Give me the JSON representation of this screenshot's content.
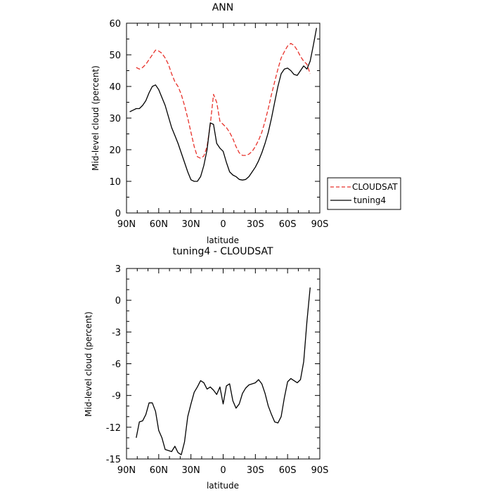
{
  "chart_data": [
    {
      "type": "line",
      "title": "ANN",
      "xlabel": "latitude",
      "ylabel": "Mid-level cloud (percent)",
      "ylim": [
        0,
        60
      ],
      "xlim": [
        90,
        -90
      ],
      "x_axis_note": "latitude in degrees, positive = N, negative = S",
      "yticks": [
        "0",
        "10",
        "20",
        "30",
        "40",
        "50",
        "60"
      ],
      "xticks": [
        "90N",
        "60N",
        "30N",
        "0",
        "30S",
        "60S",
        "90S"
      ],
      "legend": {
        "placement": "outside-right",
        "entries": [
          "CLOUDSAT",
          "tuning4"
        ]
      },
      "series": [
        {
          "name": "CLOUDSAT",
          "color": "#e8322b",
          "dash": "dashed",
          "x": [
            81,
            78,
            75,
            72,
            69,
            66,
            63,
            60,
            57,
            54,
            51,
            48,
            45,
            42,
            39,
            36,
            33,
            30,
            27,
            24,
            21,
            18,
            15,
            12,
            9,
            6,
            3,
            0,
            -3,
            -6,
            -9,
            -12,
            -15,
            -18,
            -21,
            -24,
            -27,
            -30,
            -33,
            -36,
            -39,
            -42,
            -45,
            -48,
            -51,
            -54,
            -57,
            -60,
            -63,
            -66,
            -69,
            -72,
            -75,
            -78,
            -81
          ],
          "y": [
            46,
            45.5,
            46,
            47,
            48.5,
            50,
            51.5,
            51.2,
            50.5,
            49,
            47,
            44,
            41.5,
            40,
            37.5,
            34,
            30,
            25.5,
            21,
            17.8,
            17.3,
            18,
            21,
            28,
            37.5,
            35,
            29,
            28,
            27,
            25.5,
            23.5,
            21,
            19,
            18.2,
            18.2,
            18.6,
            19.5,
            21,
            23,
            25.5,
            29,
            33,
            37.5,
            41.5,
            45.5,
            49,
            51,
            52.8,
            53.6,
            53,
            51.5,
            49.5,
            48,
            47,
            44
          ]
        },
        {
          "name": "tuning4",
          "color": "#000000",
          "dash": "solid",
          "x": [
            87,
            84,
            81,
            78,
            75,
            72,
            69,
            66,
            63,
            60,
            57,
            54,
            51,
            48,
            45,
            42,
            39,
            36,
            33,
            30,
            27,
            24,
            21,
            18,
            15,
            12,
            9,
            6,
            3,
            0,
            -3,
            -6,
            -9,
            -12,
            -15,
            -18,
            -21,
            -24,
            -27,
            -30,
            -33,
            -36,
            -39,
            -42,
            -45,
            -48,
            -51,
            -54,
            -57,
            -60,
            -63,
            -66,
            -69,
            -72,
            -75,
            -78,
            -81,
            -84,
            -87
          ],
          "y": [
            32,
            32.5,
            33,
            33,
            34,
            35.5,
            38,
            40,
            40.5,
            39,
            36.5,
            34,
            30.5,
            27,
            24.5,
            22,
            19,
            16,
            13,
            10.5,
            10,
            10,
            11.5,
            15,
            20,
            28.5,
            28,
            22,
            20.5,
            19.5,
            16,
            13,
            12,
            11.5,
            10.6,
            10.4,
            10.6,
            11.5,
            13,
            14.5,
            16.5,
            19,
            22,
            25.5,
            30,
            35,
            40,
            44,
            45.5,
            45.8,
            45,
            43.8,
            43.5,
            45,
            46.5,
            45.5,
            48,
            53,
            58.5
          ]
        }
      ]
    },
    {
      "type": "line",
      "title": "tuning4 - CLOUDSAT",
      "xlabel": "latitude",
      "ylabel": "Mid-level cloud (percent)",
      "ylim": [
        -15,
        3
      ],
      "xlim": [
        90,
        -90
      ],
      "yticks": [
        "-15",
        "-12",
        "-9",
        "-6",
        "-3",
        "0",
        "3"
      ],
      "xticks": [
        "90N",
        "60N",
        "30N",
        "0",
        "30S",
        "60S",
        "90S"
      ],
      "series": [
        {
          "color": "#000000",
          "dash": "solid",
          "x": [
            81,
            78,
            75,
            72,
            69,
            66,
            63,
            60,
            57,
            54,
            51,
            48,
            45,
            42,
            39,
            36,
            33,
            30,
            27,
            24,
            21,
            18,
            15,
            12,
            9,
            6,
            3,
            0,
            -3,
            -6,
            -9,
            -12,
            -15,
            -18,
            -21,
            -24,
            -27,
            -30,
            -33,
            -36,
            -39,
            -42,
            -45,
            -48,
            -51,
            -54,
            -57,
            -60,
            -63,
            -66,
            -69,
            -72,
            -75,
            -78,
            -81
          ],
          "y": [
            -13,
            -11.5,
            -11.4,
            -10.8,
            -9.7,
            -9.7,
            -10.5,
            -12.3,
            -13,
            -14.1,
            -14.2,
            -14.3,
            -13.8,
            -14.4,
            -14.6,
            -13.4,
            -11,
            -9.8,
            -8.7,
            -8.2,
            -7.6,
            -7.8,
            -8.4,
            -8.2,
            -8.5,
            -8.9,
            -8.2,
            -9.8,
            -8.1,
            -7.9,
            -9.5,
            -10.2,
            -9.8,
            -8.8,
            -8.3,
            -8,
            -7.9,
            -7.8,
            -7.5,
            -7.9,
            -8.8,
            -10,
            -10.8,
            -11.5,
            -11.6,
            -11,
            -9.2,
            -7.7,
            -7.4,
            -7.6,
            -7.8,
            -7.5,
            -5.8,
            -2,
            1.2
          ]
        }
      ]
    }
  ]
}
